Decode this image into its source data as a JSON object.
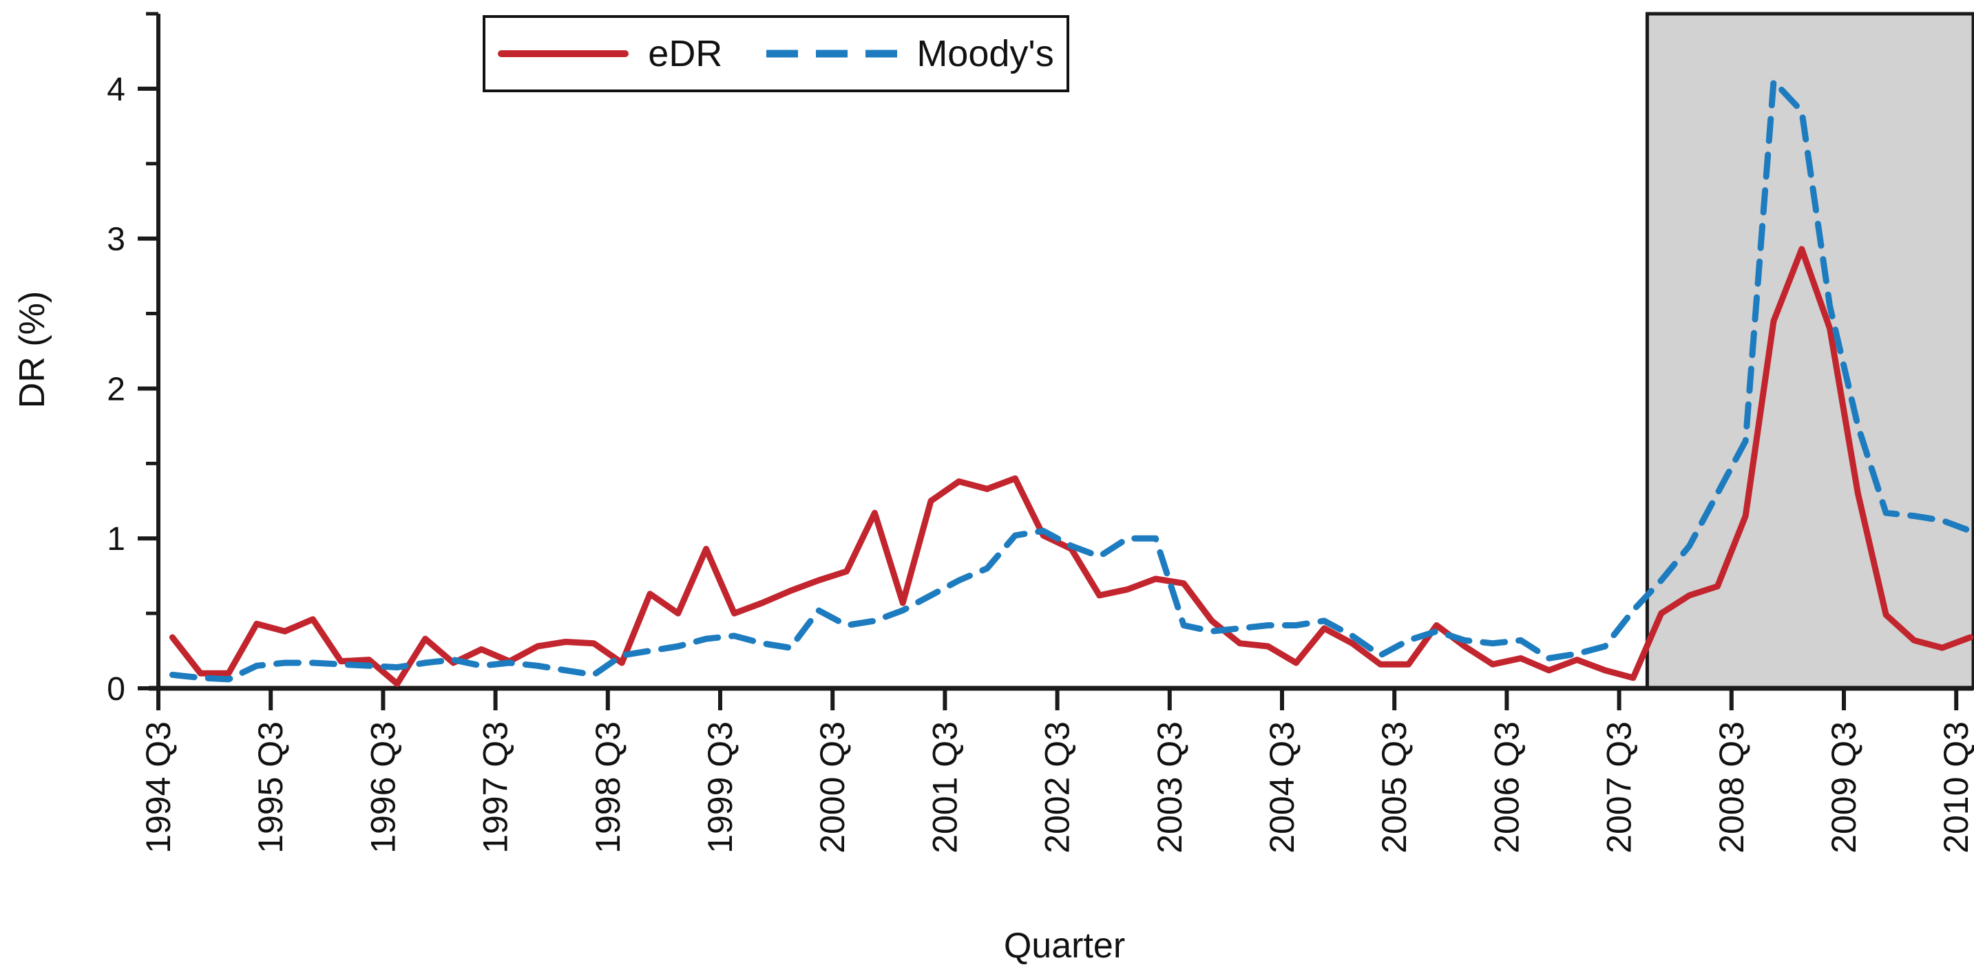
{
  "figure": {
    "legend": {
      "series1_label": "eDR",
      "series2_label": "Moody's",
      "position": "top-center"
    },
    "y_axis": {
      "title": "DR (%)",
      "tick_labels": [
        "0",
        "1",
        "2",
        "3",
        "4"
      ]
    },
    "x_axis": {
      "title": "Quarter"
    }
  },
  "chart_data": {
    "type": "line",
    "title": "",
    "xlabel": "Quarter",
    "ylabel": "DR (%)",
    "ylim": [
      0,
      4.5
    ],
    "y_ticks": [
      0,
      1,
      2,
      3,
      4
    ],
    "y_minor_ticks": [
      0.5,
      1.5,
      2.5,
      3.5,
      4.5
    ],
    "grid": false,
    "legend_position": "top-center",
    "x_tick_labels": [
      "1994 Q3",
      "1995 Q3",
      "1996 Q3",
      "1997 Q3",
      "1998 Q3",
      "1999 Q3",
      "2000 Q3",
      "2001 Q3",
      "2002 Q3",
      "2003 Q3",
      "2004 Q3",
      "2005 Q3",
      "2006 Q3",
      "2007 Q3",
      "2008 Q3",
      "2009 Q3",
      "2010 Q3"
    ],
    "x_start_quarter": "1994 Q4",
    "x_end_quarter": "2010 Q4",
    "points_per_year": 4,
    "series": [
      {
        "name": "eDR",
        "color": "#c2252d",
        "style": "solid",
        "values": [
          0.34,
          0.1,
          0.1,
          0.43,
          0.38,
          0.46,
          0.18,
          0.19,
          0.03,
          0.33,
          0.17,
          0.26,
          0.18,
          0.28,
          0.31,
          0.3,
          0.17,
          0.63,
          0.5,
          0.93,
          0.5,
          0.57,
          0.65,
          0.72,
          0.78,
          1.17,
          0.57,
          1.25,
          1.38,
          1.33,
          1.4,
          1.02,
          0.93,
          0.62,
          0.66,
          0.73,
          0.7,
          0.45,
          0.3,
          0.28,
          0.17,
          0.4,
          0.3,
          0.16,
          0.16,
          0.42,
          0.28,
          0.16,
          0.2,
          0.12,
          0.19,
          0.12,
          0.07,
          0.5,
          0.62,
          0.68,
          1.15,
          2.45,
          2.93,
          2.4,
          1.3,
          0.49,
          0.32,
          0.27,
          0.34
        ]
      },
      {
        "name": "Moody's",
        "color": "#1d7cbf",
        "style": "dashed",
        "values": [
          0.09,
          0.07,
          0.06,
          0.15,
          0.17,
          0.17,
          0.16,
          0.15,
          0.14,
          0.17,
          0.19,
          0.15,
          0.17,
          0.15,
          0.12,
          0.09,
          0.22,
          0.25,
          0.28,
          0.33,
          0.35,
          0.3,
          0.27,
          0.52,
          0.42,
          0.45,
          0.52,
          0.62,
          0.72,
          0.8,
          1.02,
          1.05,
          0.95,
          0.88,
          1.0,
          1.0,
          0.42,
          0.38,
          0.4,
          0.42,
          0.42,
          0.45,
          0.35,
          0.22,
          0.32,
          0.38,
          0.32,
          0.3,
          0.32,
          0.2,
          0.23,
          0.28,
          0.52,
          0.72,
          0.95,
          1.3,
          1.65,
          4.05,
          3.85,
          2.55,
          1.75,
          1.17,
          1.15,
          1.12,
          1.05
        ]
      }
    ],
    "shaded_region": {
      "from_quarter": "2008 Q1",
      "to_quarter": "2010 Q4",
      "fill": "#d2d2d2",
      "border_color": "#1a1a1a"
    }
  }
}
